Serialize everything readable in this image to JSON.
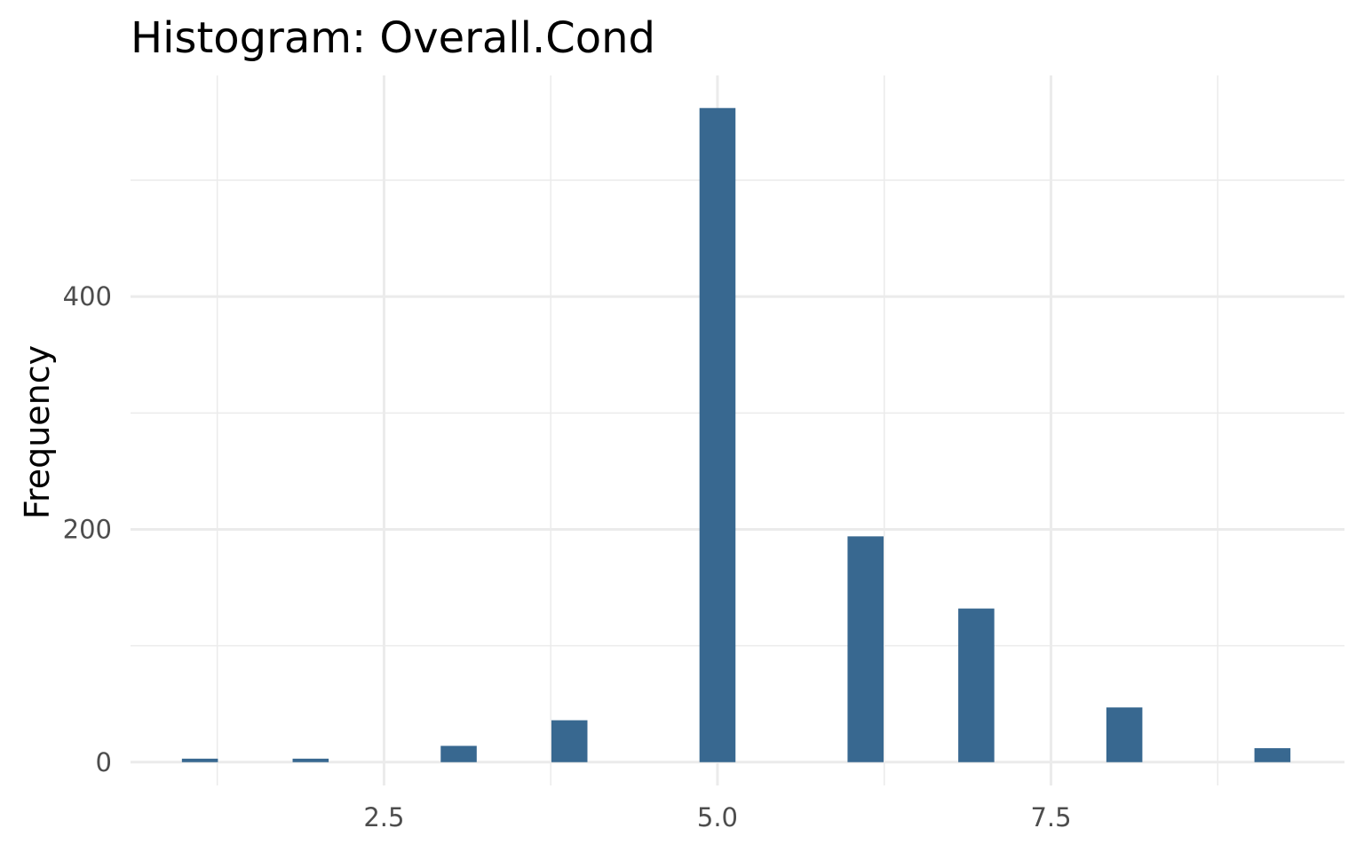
{
  "chart_data": {
    "type": "bar",
    "title": "Histogram:  Overall.Cond",
    "xlabel": "",
    "ylabel": "Frequency",
    "bar_color": "#386890",
    "grid": true,
    "legend": "none",
    "xlim": [
      0.6,
      9.7
    ],
    "ylim": [
      -20,
      590
    ],
    "x_ticks": [
      2.5,
      5.0,
      7.5
    ],
    "x_tick_labels": [
      "2.5",
      "5.0",
      "7.5"
    ],
    "x_minor_ticks": [
      1.25,
      3.75,
      6.25,
      8.75
    ],
    "y_ticks": [
      0,
      200,
      400
    ],
    "y_tick_labels": [
      "0",
      "200",
      "400"
    ],
    "y_minor_ticks": [
      100,
      300,
      500
    ],
    "bin_width": 0.27,
    "bins": [
      {
        "x": 1.12,
        "count": 3
      },
      {
        "x": 1.95,
        "count": 3
      },
      {
        "x": 3.06,
        "count": 14
      },
      {
        "x": 3.89,
        "count": 36
      },
      {
        "x": 5.0,
        "count": 562
      },
      {
        "x": 6.11,
        "count": 194
      },
      {
        "x": 6.94,
        "count": 132
      },
      {
        "x": 8.05,
        "count": 47
      },
      {
        "x": 9.16,
        "count": 12
      }
    ]
  }
}
